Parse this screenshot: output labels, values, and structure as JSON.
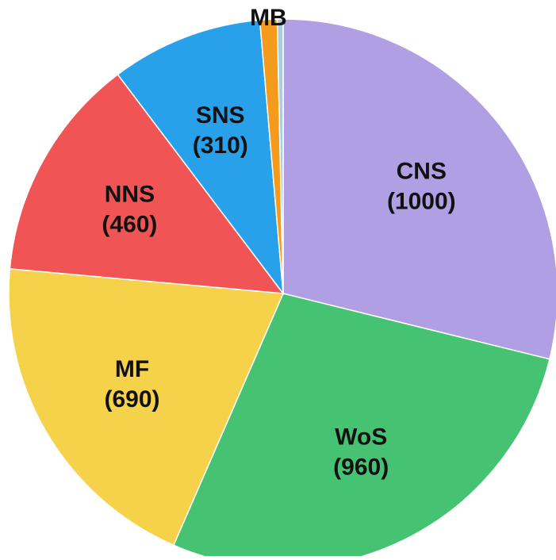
{
  "chart_data": {
    "type": "pie",
    "categories": [
      "CNS",
      "WoS",
      "MF",
      "NNS",
      "SNS",
      "MB",
      null
    ],
    "values": [
      1000,
      960,
      690,
      460,
      310,
      35,
      12
    ],
    "value_labels": [
      "(1000)",
      "(960)",
      "(690)",
      "(460)",
      "(310)",
      null,
      null
    ],
    "colors": [
      "#b19fe3",
      "#45c373",
      "#f5d249",
      "#f05454",
      "#28a0ea",
      "#f59b1c",
      "#a8cfe0"
    ]
  }
}
